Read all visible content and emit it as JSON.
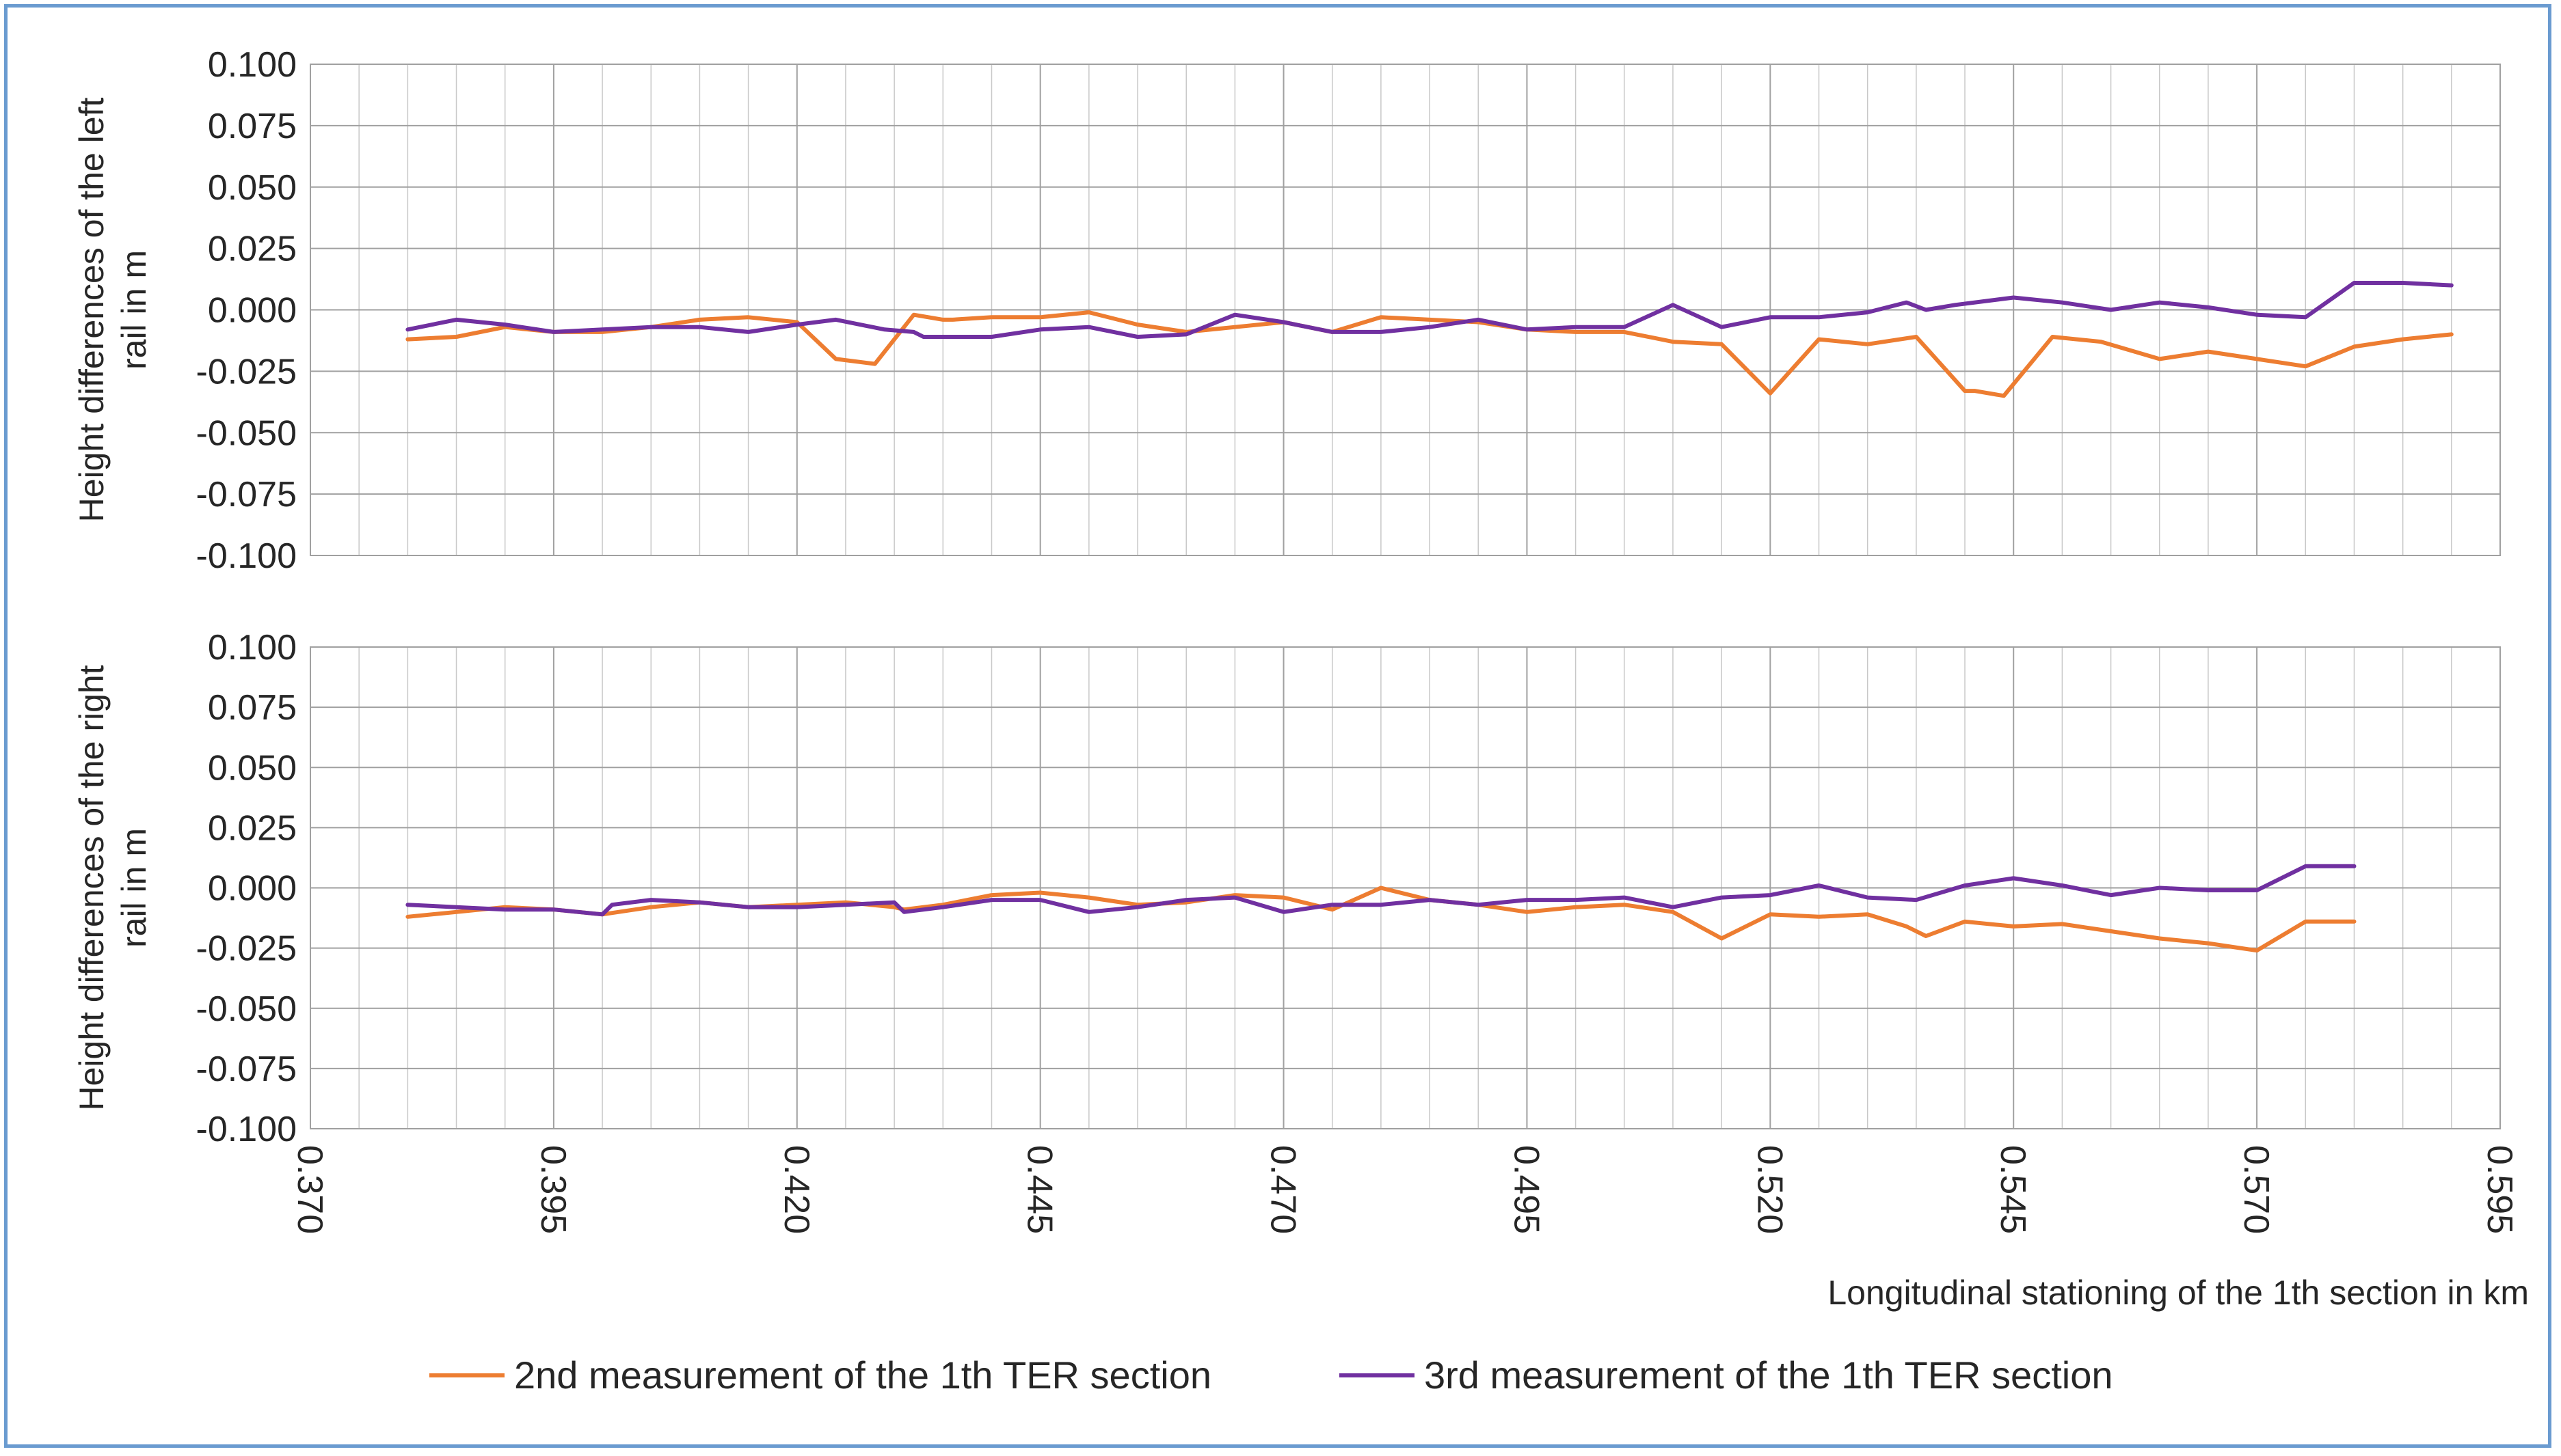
{
  "colors": {
    "series2": "#ED7D31",
    "series3": "#7030A0",
    "grid": "#c8c8c8",
    "gridMajor": "#a0a0a0",
    "border": "#6a9bd0"
  },
  "chart_data": [
    {
      "type": "line",
      "ylabel_lines": [
        "Height differences of the left",
        "rail in m"
      ],
      "xlabel": "",
      "ylim": [
        -0.1,
        0.1
      ],
      "yticks": [
        "0.100",
        "0.075",
        "0.050",
        "0.025",
        "0.000",
        "-0.025",
        "-0.050",
        "-0.075",
        "-0.100"
      ],
      "xlim": [
        0.37,
        0.595
      ],
      "series": [
        {
          "name": "2nd measurement of the 1th TER section",
          "x": [
            0.38,
            0.385,
            0.39,
            0.395,
            0.4,
            0.405,
            0.41,
            0.415,
            0.42,
            0.424,
            0.428,
            0.432,
            0.435,
            0.436,
            0.44,
            0.445,
            0.45,
            0.455,
            0.46,
            0.465,
            0.47,
            0.475,
            0.48,
            0.485,
            0.49,
            0.495,
            0.5,
            0.505,
            0.51,
            0.515,
            0.52,
            0.525,
            0.53,
            0.535,
            0.54,
            0.541,
            0.544,
            0.549,
            0.554,
            0.56,
            0.565,
            0.57,
            0.575,
            0.58,
            0.585,
            0.59
          ],
          "y": [
            -0.012,
            -0.011,
            -0.007,
            -0.009,
            -0.009,
            -0.007,
            -0.004,
            -0.003,
            -0.005,
            -0.02,
            -0.022,
            -0.002,
            -0.004,
            -0.004,
            -0.003,
            -0.003,
            -0.001,
            -0.006,
            -0.009,
            -0.007,
            -0.005,
            -0.009,
            -0.003,
            -0.004,
            -0.005,
            -0.008,
            -0.009,
            -0.009,
            -0.013,
            -0.014,
            -0.034,
            -0.012,
            -0.014,
            -0.011,
            -0.033,
            -0.033,
            -0.035,
            -0.011,
            -0.013,
            -0.02,
            -0.017,
            -0.02,
            -0.023,
            -0.015,
            -0.012,
            -0.01
          ]
        },
        {
          "name": "3rd measurement of the 1th TER section",
          "x": [
            0.38,
            0.385,
            0.39,
            0.395,
            0.4,
            0.405,
            0.41,
            0.415,
            0.42,
            0.424,
            0.429,
            0.432,
            0.433,
            0.44,
            0.445,
            0.45,
            0.455,
            0.46,
            0.465,
            0.47,
            0.475,
            0.48,
            0.485,
            0.49,
            0.495,
            0.5,
            0.505,
            0.51,
            0.515,
            0.52,
            0.525,
            0.53,
            0.534,
            0.536,
            0.539,
            0.545,
            0.55,
            0.555,
            0.56,
            0.565,
            0.57,
            0.575,
            0.58,
            0.585,
            0.59
          ],
          "y": [
            -0.008,
            -0.004,
            -0.006,
            -0.009,
            -0.008,
            -0.007,
            -0.007,
            -0.009,
            -0.006,
            -0.004,
            -0.008,
            -0.009,
            -0.011,
            -0.011,
            -0.008,
            -0.007,
            -0.011,
            -0.01,
            -0.002,
            -0.005,
            -0.009,
            -0.009,
            -0.007,
            -0.004,
            -0.008,
            -0.007,
            -0.007,
            0.002,
            -0.007,
            -0.003,
            -0.003,
            -0.001,
            0.003,
            0.0,
            0.002,
            0.005,
            0.003,
            0.0,
            0.003,
            0.001,
            -0.002,
            -0.003,
            0.011,
            0.011,
            0.01
          ]
        }
      ]
    },
    {
      "type": "line",
      "ylabel_lines": [
        "Height differences of the right",
        "rail in m"
      ],
      "xlabel": "Longitudinal stationing of the 1th section in km",
      "ylim": [
        -0.1,
        0.1
      ],
      "yticks": [
        "0.100",
        "0.075",
        "0.050",
        "0.025",
        "0.000",
        "-0.025",
        "-0.050",
        "-0.075",
        "-0.100"
      ],
      "xlim": [
        0.37,
        0.595
      ],
      "xticks": [
        "0.370",
        "0.395",
        "0.420",
        "0.445",
        "0.470",
        "0.495",
        "0.520",
        "0.545",
        "0.570",
        "0.595"
      ],
      "series": [
        {
          "name": "2nd measurement of the 1th TER section",
          "x": [
            0.38,
            0.385,
            0.39,
            0.395,
            0.4,
            0.405,
            0.41,
            0.415,
            0.42,
            0.425,
            0.43,
            0.431,
            0.435,
            0.44,
            0.445,
            0.45,
            0.455,
            0.46,
            0.465,
            0.47,
            0.475,
            0.48,
            0.485,
            0.49,
            0.495,
            0.5,
            0.505,
            0.51,
            0.515,
            0.52,
            0.525,
            0.53,
            0.534,
            0.536,
            0.54,
            0.545,
            0.55,
            0.555,
            0.56,
            0.565,
            0.57,
            0.575,
            0.58
          ],
          "y": [
            -0.012,
            -0.01,
            -0.008,
            -0.009,
            -0.011,
            -0.008,
            -0.006,
            -0.008,
            -0.007,
            -0.006,
            -0.008,
            -0.009,
            -0.007,
            -0.003,
            -0.002,
            -0.004,
            -0.007,
            -0.006,
            -0.003,
            -0.004,
            -0.009,
            0.0,
            -0.005,
            -0.007,
            -0.01,
            -0.008,
            -0.007,
            -0.01,
            -0.021,
            -0.011,
            -0.012,
            -0.011,
            -0.016,
            -0.02,
            -0.014,
            -0.016,
            -0.015,
            -0.018,
            -0.021,
            -0.023,
            -0.026,
            -0.014,
            -0.014
          ]
        },
        {
          "name": "3rd measurement of the 1th TER section",
          "x": [
            0.38,
            0.385,
            0.39,
            0.395,
            0.4,
            0.401,
            0.405,
            0.41,
            0.415,
            0.42,
            0.425,
            0.43,
            0.431,
            0.435,
            0.44,
            0.445,
            0.45,
            0.455,
            0.46,
            0.465,
            0.47,
            0.475,
            0.48,
            0.485,
            0.49,
            0.495,
            0.5,
            0.505,
            0.51,
            0.515,
            0.52,
            0.525,
            0.53,
            0.535,
            0.54,
            0.545,
            0.55,
            0.555,
            0.56,
            0.565,
            0.57,
            0.575,
            0.58
          ],
          "y": [
            -0.007,
            -0.008,
            -0.009,
            -0.009,
            -0.011,
            -0.007,
            -0.005,
            -0.006,
            -0.008,
            -0.008,
            -0.007,
            -0.006,
            -0.01,
            -0.008,
            -0.005,
            -0.005,
            -0.01,
            -0.008,
            -0.005,
            -0.004,
            -0.01,
            -0.007,
            -0.007,
            -0.005,
            -0.007,
            -0.005,
            -0.005,
            -0.004,
            -0.008,
            -0.004,
            -0.003,
            0.001,
            -0.004,
            -0.005,
            0.001,
            0.004,
            0.001,
            -0.003,
            0.0,
            -0.001,
            -0.001,
            0.009,
            0.009
          ]
        }
      ]
    }
  ],
  "legend": {
    "items": [
      {
        "label": "2nd measurement of the 1th TER section"
      },
      {
        "label": "3rd measurement of the 1th TER section"
      }
    ]
  }
}
